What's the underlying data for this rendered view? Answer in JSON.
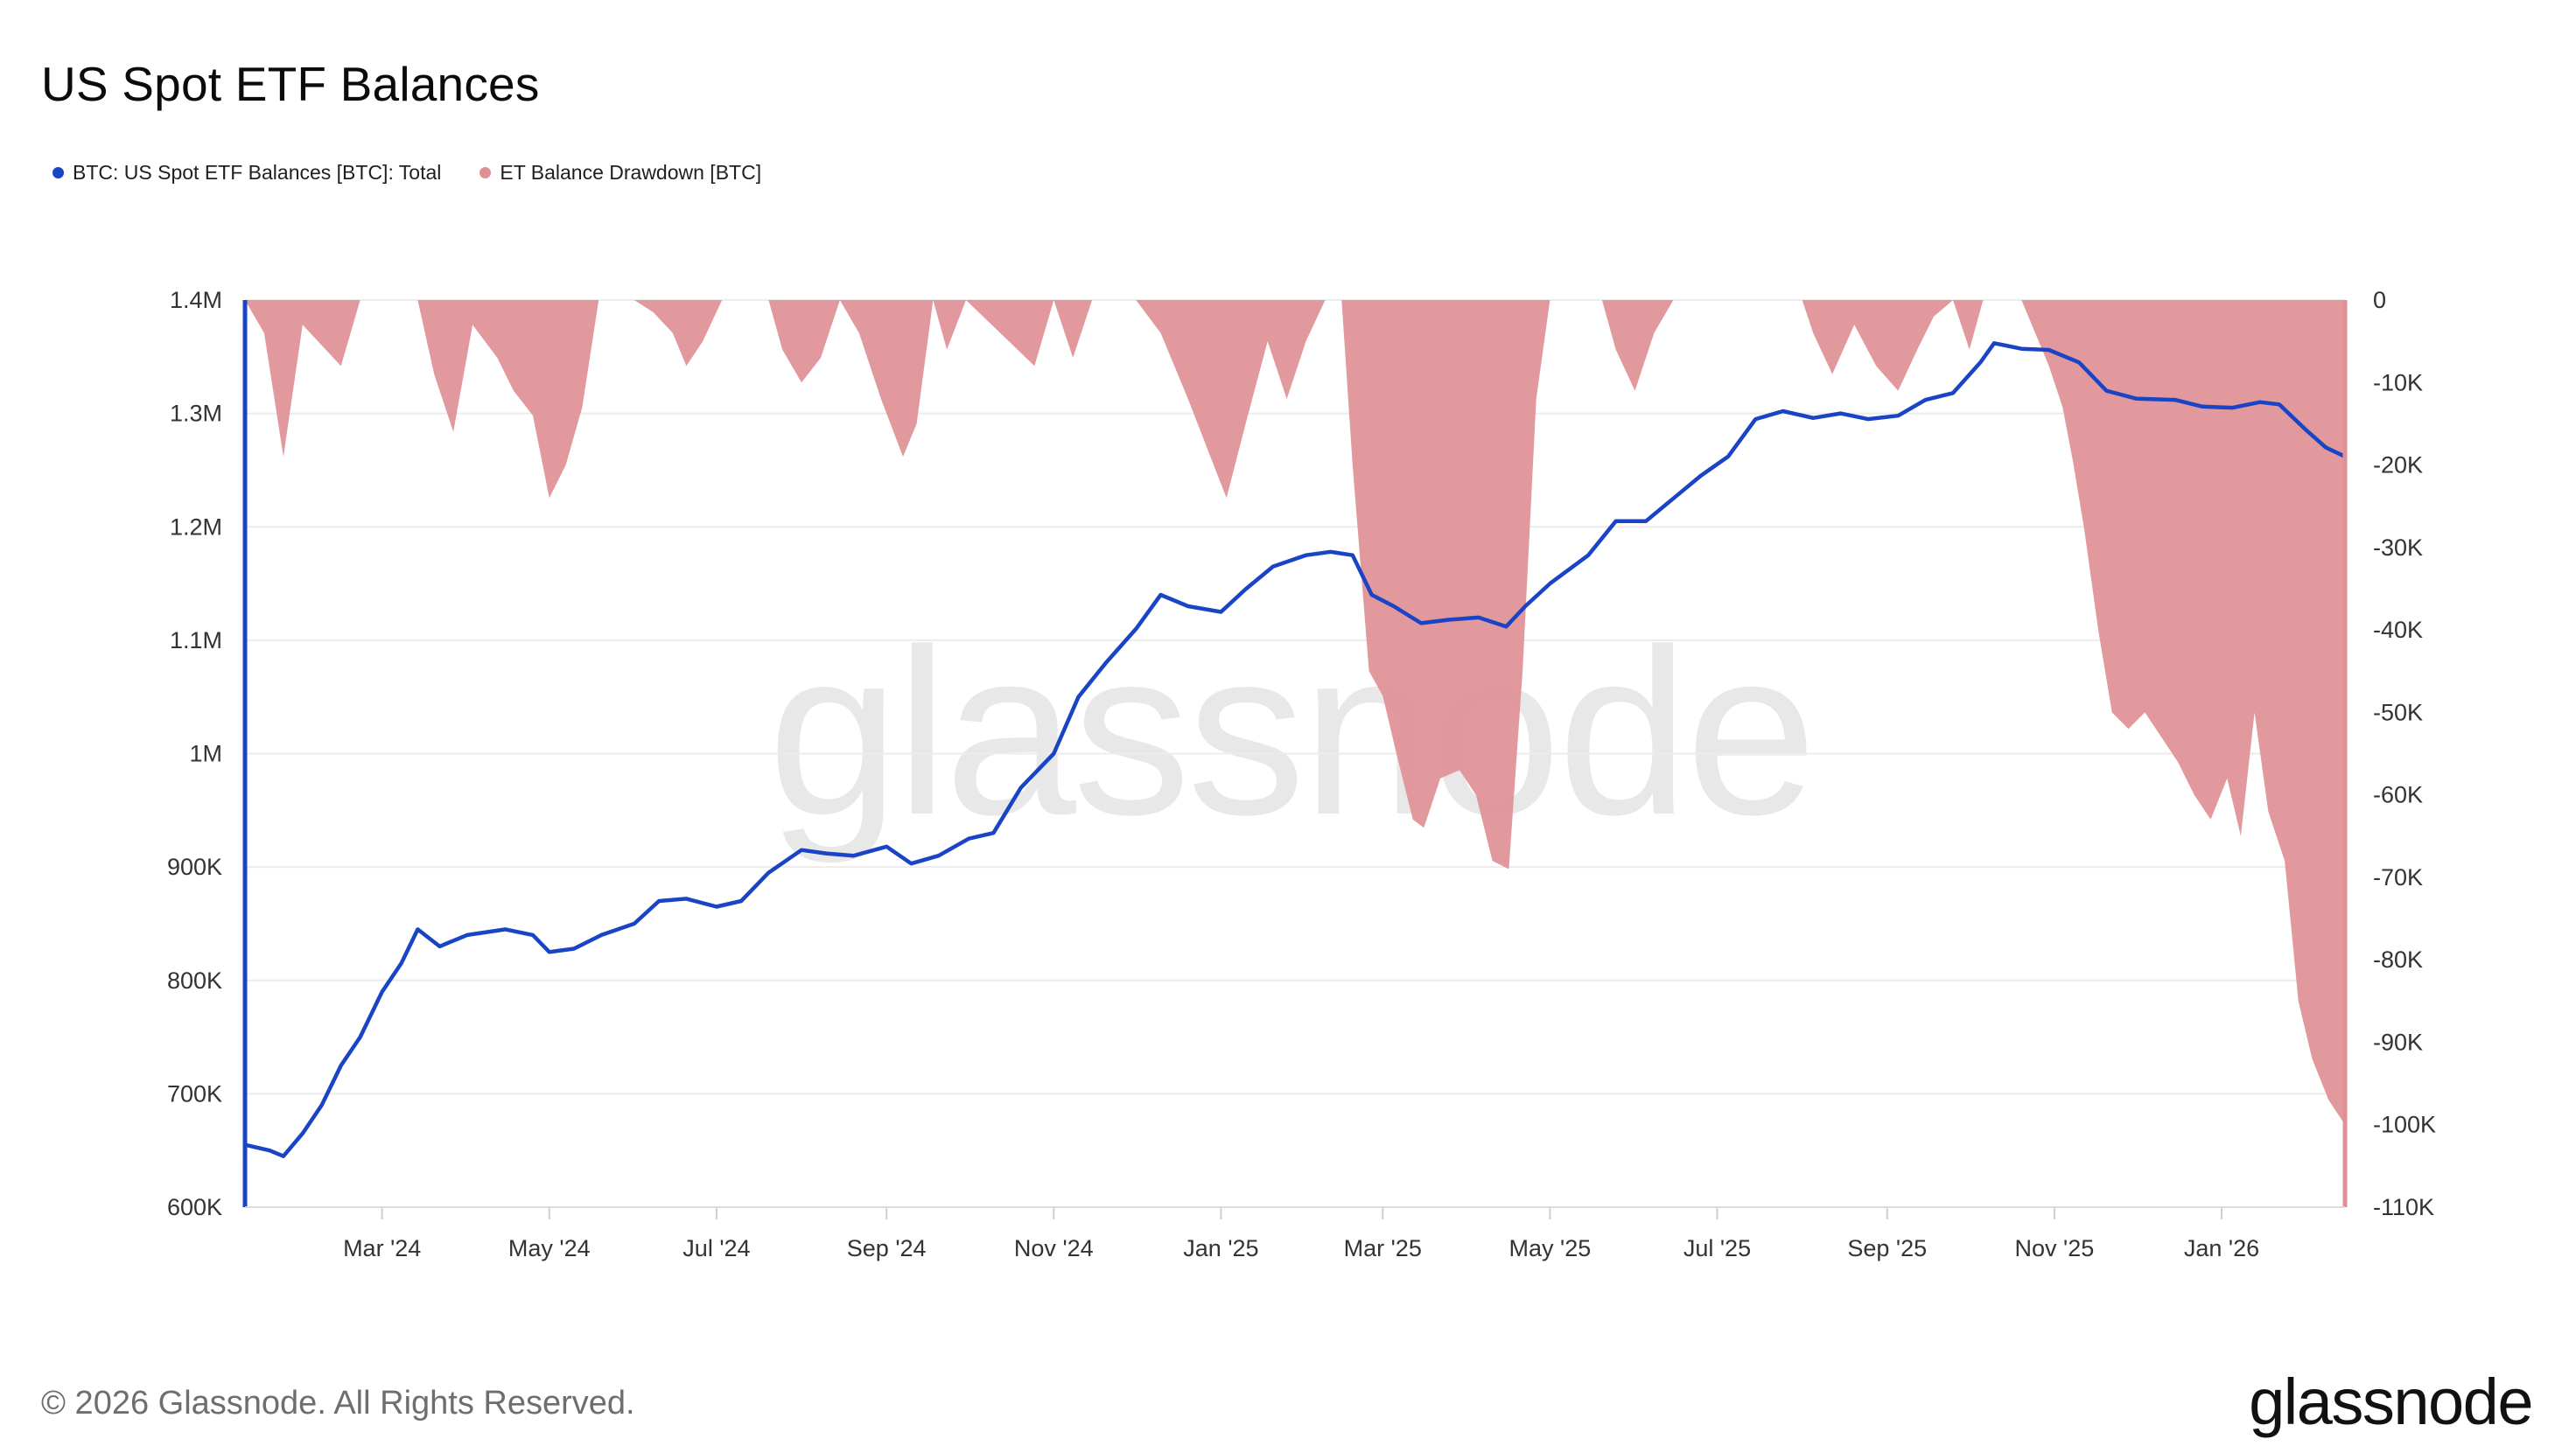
{
  "header": {
    "title": "US Spot ETF Balances"
  },
  "legend": [
    {
      "label": "BTC: US Spot ETF Balances [BTC]: Total",
      "color": "#1a44c6"
    },
    {
      "label": "ET Balance Drawdown [BTC]",
      "color": "#e09095"
    }
  ],
  "footer": {
    "copyright": "© 2026 Glassnode. All Rights Reserved.",
    "logo_text": "glassnode"
  },
  "watermark": "glassnode",
  "chart_data": {
    "type": "line",
    "x_ticks": [
      "Mar '24",
      "May '24",
      "Jul '24",
      "Sep '24",
      "Nov '24",
      "Jan '25",
      "Mar '25",
      "May '25",
      "Jul '25",
      "Sep '25",
      "Nov '25",
      "Jan '26"
    ],
    "y_left_ticks": [
      "1.4M",
      "1.3M",
      "1.2M",
      "1.1M",
      "1M",
      "900K",
      "800K",
      "700K",
      "600K"
    ],
    "y_right_ticks": [
      "0",
      "-10K",
      "-20K",
      "-30K",
      "-40K",
      "-50K",
      "-60K",
      "-70K",
      "-80K",
      "-90K",
      "-100K",
      "-110K"
    ],
    "ylim_left": [
      600000,
      1400000
    ],
    "ylim_right": [
      -110000,
      0
    ],
    "xlim": [
      "2024-01-11",
      "2026-02-15"
    ],
    "grid": true,
    "series": [
      {
        "name": "BTC: US Spot ETF Balances [BTC]: Total",
        "axis": "left",
        "color": "#1a44c6",
        "points": [
          [
            "2024-01-11",
            655000
          ],
          [
            "2024-01-20",
            650000
          ],
          [
            "2024-01-25",
            645000
          ],
          [
            "2024-02-01",
            665000
          ],
          [
            "2024-02-08",
            690000
          ],
          [
            "2024-02-15",
            725000
          ],
          [
            "2024-02-22",
            750000
          ],
          [
            "2024-03-01",
            790000
          ],
          [
            "2024-03-08",
            815000
          ],
          [
            "2024-03-14",
            845000
          ],
          [
            "2024-03-22",
            830000
          ],
          [
            "2024-04-01",
            840000
          ],
          [
            "2024-04-15",
            845000
          ],
          [
            "2024-04-25",
            840000
          ],
          [
            "2024-05-01",
            825000
          ],
          [
            "2024-05-10",
            828000
          ],
          [
            "2024-05-20",
            840000
          ],
          [
            "2024-06-01",
            850000
          ],
          [
            "2024-06-10",
            870000
          ],
          [
            "2024-06-20",
            872000
          ],
          [
            "2024-07-01",
            865000
          ],
          [
            "2024-07-10",
            870000
          ],
          [
            "2024-07-20",
            895000
          ],
          [
            "2024-08-01",
            915000
          ],
          [
            "2024-08-10",
            912000
          ],
          [
            "2024-08-20",
            910000
          ],
          [
            "2024-09-01",
            918000
          ],
          [
            "2024-09-10",
            903000
          ],
          [
            "2024-09-20",
            910000
          ],
          [
            "2024-10-01",
            925000
          ],
          [
            "2024-10-10",
            930000
          ],
          [
            "2024-10-20",
            970000
          ],
          [
            "2024-11-01",
            1000000
          ],
          [
            "2024-11-10",
            1050000
          ],
          [
            "2024-11-20",
            1080000
          ],
          [
            "2024-12-01",
            1110000
          ],
          [
            "2024-12-10",
            1140000
          ],
          [
            "2024-12-20",
            1130000
          ],
          [
            "2025-01-01",
            1125000
          ],
          [
            "2025-01-10",
            1145000
          ],
          [
            "2025-01-20",
            1165000
          ],
          [
            "2025-02-01",
            1175000
          ],
          [
            "2025-02-10",
            1178000
          ],
          [
            "2025-02-18",
            1175000
          ],
          [
            "2025-02-25",
            1140000
          ],
          [
            "2025-03-05",
            1130000
          ],
          [
            "2025-03-15",
            1115000
          ],
          [
            "2025-03-25",
            1118000
          ],
          [
            "2025-04-05",
            1120000
          ],
          [
            "2025-04-15",
            1112000
          ],
          [
            "2025-04-22",
            1130000
          ],
          [
            "2025-05-01",
            1150000
          ],
          [
            "2025-05-15",
            1175000
          ],
          [
            "2025-05-25",
            1205000
          ],
          [
            "2025-06-05",
            1205000
          ],
          [
            "2025-06-15",
            1225000
          ],
          [
            "2025-06-25",
            1245000
          ],
          [
            "2025-07-05",
            1262000
          ],
          [
            "2025-07-15",
            1295000
          ],
          [
            "2025-07-25",
            1302000
          ],
          [
            "2025-08-05",
            1296000
          ],
          [
            "2025-08-15",
            1300000
          ],
          [
            "2025-08-25",
            1295000
          ],
          [
            "2025-09-05",
            1298000
          ],
          [
            "2025-09-15",
            1312000
          ],
          [
            "2025-09-25",
            1318000
          ],
          [
            "2025-10-05",
            1345000
          ],
          [
            "2025-10-10",
            1362000
          ],
          [
            "2025-10-20",
            1357000
          ],
          [
            "2025-10-30",
            1356000
          ],
          [
            "2025-11-10",
            1345000
          ],
          [
            "2025-11-20",
            1320000
          ],
          [
            "2025-12-01",
            1313000
          ],
          [
            "2025-12-15",
            1312000
          ],
          [
            "2025-12-25",
            1306000
          ],
          [
            "2026-01-05",
            1305000
          ],
          [
            "2026-01-15",
            1310000
          ],
          [
            "2026-01-22",
            1308000
          ],
          [
            "2026-02-01",
            1285000
          ],
          [
            "2026-02-08",
            1270000
          ],
          [
            "2026-02-15",
            1262000
          ]
        ]
      },
      {
        "name": "ET Balance Drawdown [BTC]",
        "axis": "right",
        "type": "area",
        "color": "#e09095",
        "points": [
          [
            "2024-01-11",
            0
          ],
          [
            "2024-01-18",
            -4000
          ],
          [
            "2024-01-25",
            -19000
          ],
          [
            "2024-02-01",
            -3000
          ],
          [
            "2024-02-15",
            -8000
          ],
          [
            "2024-02-22",
            0
          ],
          [
            "2024-03-14",
            0
          ],
          [
            "2024-03-20",
            -9000
          ],
          [
            "2024-03-27",
            -16000
          ],
          [
            "2024-04-03",
            -3000
          ],
          [
            "2024-04-12",
            -7000
          ],
          [
            "2024-04-18",
            -11000
          ],
          [
            "2024-04-25",
            -14000
          ],
          [
            "2024-05-01",
            -24000
          ],
          [
            "2024-05-07",
            -20000
          ],
          [
            "2024-05-13",
            -13000
          ],
          [
            "2024-05-19",
            0
          ],
          [
            "2024-06-01",
            0
          ],
          [
            "2024-06-08",
            -1500
          ],
          [
            "2024-06-15",
            -4000
          ],
          [
            "2024-06-20",
            -8000
          ],
          [
            "2024-06-26",
            -5000
          ],
          [
            "2024-07-03",
            0
          ],
          [
            "2024-07-20",
            0
          ],
          [
            "2024-07-25",
            -6000
          ],
          [
            "2024-08-01",
            -10000
          ],
          [
            "2024-08-08",
            -7000
          ],
          [
            "2024-08-15",
            0
          ],
          [
            "2024-08-22",
            -4000
          ],
          [
            "2024-08-30",
            -12000
          ],
          [
            "2024-09-07",
            -19000
          ],
          [
            "2024-09-12",
            -15000
          ],
          [
            "2024-09-18",
            0
          ],
          [
            "2024-09-23",
            -6000
          ],
          [
            "2024-09-30",
            0
          ],
          [
            "2024-10-25",
            -8000
          ],
          [
            "2024-11-01",
            0
          ],
          [
            "2024-11-08",
            -7000
          ],
          [
            "2024-11-15",
            0
          ],
          [
            "2024-12-01",
            0
          ],
          [
            "2024-12-10",
            -4000
          ],
          [
            "2024-12-20",
            -12000
          ],
          [
            "2024-12-27",
            -18000
          ],
          [
            "2025-01-03",
            -24000
          ],
          [
            "2025-01-10",
            -15000
          ],
          [
            "2025-01-18",
            -5000
          ],
          [
            "2025-01-25",
            -12000
          ],
          [
            "2025-02-01",
            -5000
          ],
          [
            "2025-02-08",
            0
          ],
          [
            "2025-02-14",
            0
          ],
          [
            "2025-02-18",
            -20000
          ],
          [
            "2025-02-24",
            -45000
          ],
          [
            "2025-03-01",
            -48000
          ],
          [
            "2025-03-06",
            -55000
          ],
          [
            "2025-03-12",
            -63000
          ],
          [
            "2025-03-16",
            -64000
          ],
          [
            "2025-03-22",
            -58000
          ],
          [
            "2025-03-29",
            -57000
          ],
          [
            "2025-04-04",
            -60000
          ],
          [
            "2025-04-10",
            -68000
          ],
          [
            "2025-04-16",
            -69000
          ],
          [
            "2025-04-21",
            -45000
          ],
          [
            "2025-04-26",
            -12000
          ],
          [
            "2025-05-01",
            0
          ],
          [
            "2025-05-20",
            0
          ],
          [
            "2025-05-25",
            -6000
          ],
          [
            "2025-06-01",
            -11000
          ],
          [
            "2025-06-08",
            -4000
          ],
          [
            "2025-06-15",
            0
          ],
          [
            "2025-08-01",
            0
          ],
          [
            "2025-08-05",
            -4000
          ],
          [
            "2025-08-12",
            -9000
          ],
          [
            "2025-08-20",
            -3000
          ],
          [
            "2025-08-28",
            -8000
          ],
          [
            "2025-09-05",
            -11000
          ],
          [
            "2025-09-12",
            -6000
          ],
          [
            "2025-09-18",
            -2000
          ],
          [
            "2025-09-25",
            0
          ],
          [
            "2025-10-01",
            -6000
          ],
          [
            "2025-10-06",
            0
          ],
          [
            "2025-10-20",
            0
          ],
          [
            "2025-10-25",
            -4000
          ],
          [
            "2025-10-30",
            -8000
          ],
          [
            "2025-11-04",
            -13000
          ],
          [
            "2025-11-08",
            -20000
          ],
          [
            "2025-11-12",
            -28000
          ],
          [
            "2025-11-17",
            -40000
          ],
          [
            "2025-11-22",
            -50000
          ],
          [
            "2025-11-28",
            -52000
          ],
          [
            "2025-12-04",
            -50000
          ],
          [
            "2025-12-10",
            -53000
          ],
          [
            "2025-12-16",
            -56000
          ],
          [
            "2025-12-22",
            -60000
          ],
          [
            "2025-12-28",
            -63000
          ],
          [
            "2026-01-03",
            -58000
          ],
          [
            "2026-01-08",
            -65000
          ],
          [
            "2026-01-13",
            -50000
          ],
          [
            "2026-01-18",
            -62000
          ],
          [
            "2026-01-24",
            -68000
          ],
          [
            "2026-01-29",
            -85000
          ],
          [
            "2026-02-03",
            -92000
          ],
          [
            "2026-02-09",
            -97000
          ],
          [
            "2026-02-15",
            -100000
          ]
        ]
      }
    ]
  }
}
